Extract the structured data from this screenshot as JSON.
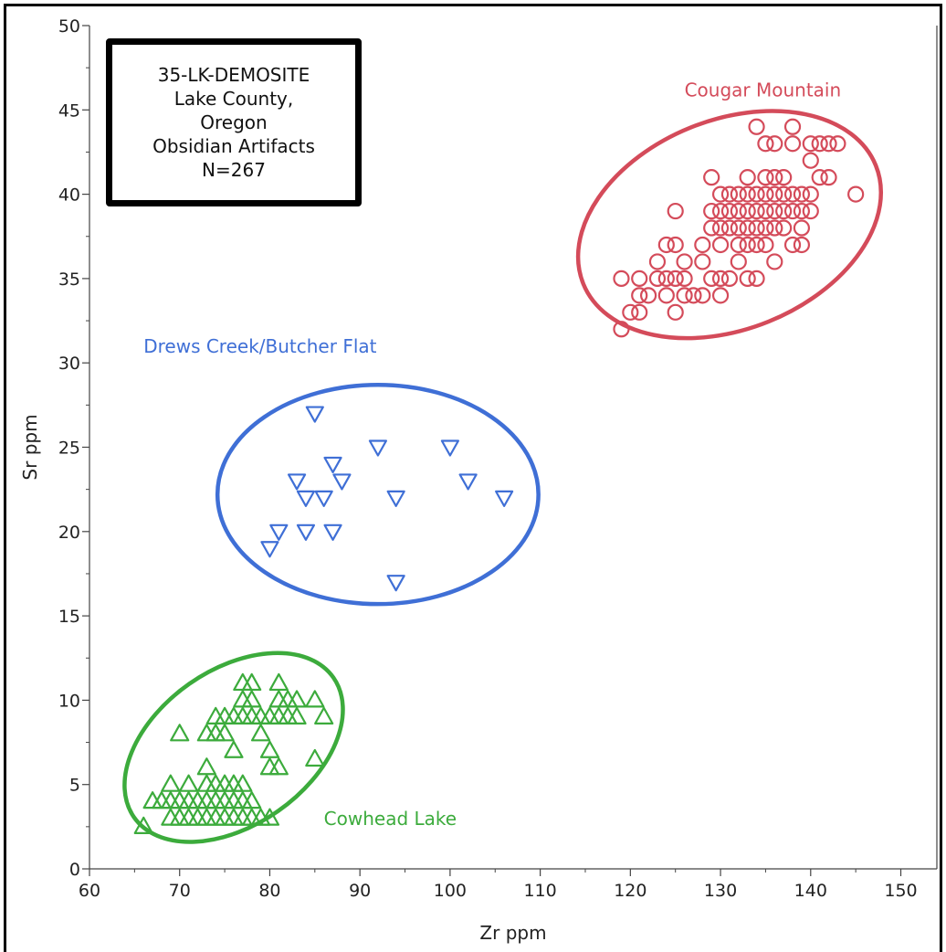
{
  "chart_data": {
    "type": "scatter",
    "xlabel": "Zr ppm",
    "ylabel": "Sr ppm",
    "xlim": [
      60,
      154
    ],
    "ylim": [
      0,
      50
    ],
    "x_ticks": [
      "60",
      "70",
      "80",
      "90",
      "100",
      "110",
      "120",
      "130",
      "140",
      "150"
    ],
    "y_ticks": [
      "0",
      "5",
      "10",
      "15",
      "20",
      "25",
      "30",
      "35",
      "40",
      "45",
      "50"
    ],
    "grid": false,
    "info_box": [
      "35-LK-DEMOSITE",
      "Lake County,",
      "Oregon",
      "Obsidian Artifacts",
      "N=267"
    ],
    "series": [
      {
        "name": "Cougar Mountain",
        "marker": "circle",
        "color": "#d44b5a",
        "ellipse": {
          "cx": 131,
          "cy": 38.2,
          "rx": 17.5,
          "ry": 6.2,
          "angle_deg": 22
        },
        "points": [
          [
            119,
            32
          ],
          [
            119,
            35
          ],
          [
            120,
            33
          ],
          [
            121,
            33
          ],
          [
            121,
            34
          ],
          [
            121,
            35
          ],
          [
            122,
            34
          ],
          [
            123,
            35
          ],
          [
            123,
            36
          ],
          [
            124,
            34
          ],
          [
            124,
            35
          ],
          [
            124,
            37
          ],
          [
            125,
            33
          ],
          [
            125,
            35
          ],
          [
            125,
            37
          ],
          [
            125,
            39
          ],
          [
            126,
            34
          ],
          [
            126,
            35
          ],
          [
            126,
            36
          ],
          [
            127,
            34
          ],
          [
            128,
            34
          ],
          [
            128,
            36
          ],
          [
            128,
            37
          ],
          [
            129,
            35
          ],
          [
            129,
            38
          ],
          [
            129,
            39
          ],
          [
            129,
            41
          ],
          [
            130,
            34
          ],
          [
            130,
            35
          ],
          [
            130,
            37
          ],
          [
            130,
            38
          ],
          [
            130,
            39
          ],
          [
            130,
            40
          ],
          [
            131,
            35
          ],
          [
            131,
            38
          ],
          [
            131,
            39
          ],
          [
            131,
            40
          ],
          [
            132,
            36
          ],
          [
            132,
            37
          ],
          [
            132,
            38
          ],
          [
            132,
            39
          ],
          [
            132,
            40
          ],
          [
            133,
            35
          ],
          [
            133,
            37
          ],
          [
            133,
            38
          ],
          [
            133,
            39
          ],
          [
            133,
            40
          ],
          [
            133,
            41
          ],
          [
            134,
            35
          ],
          [
            134,
            37
          ],
          [
            134,
            38
          ],
          [
            134,
            39
          ],
          [
            134,
            40
          ],
          [
            134,
            44
          ],
          [
            135,
            37
          ],
          [
            135,
            38
          ],
          [
            135,
            39
          ],
          [
            135,
            40
          ],
          [
            135,
            41
          ],
          [
            135,
            43
          ],
          [
            136,
            36
          ],
          [
            136,
            38
          ],
          [
            136,
            39
          ],
          [
            136,
            40
          ],
          [
            136,
            41
          ],
          [
            136,
            43
          ],
          [
            137,
            38
          ],
          [
            137,
            39
          ],
          [
            137,
            40
          ],
          [
            137,
            41
          ],
          [
            138,
            37
          ],
          [
            138,
            39
          ],
          [
            138,
            40
          ],
          [
            138,
            43
          ],
          [
            138,
            44
          ],
          [
            139,
            37
          ],
          [
            139,
            38
          ],
          [
            139,
            39
          ],
          [
            139,
            40
          ],
          [
            140,
            39
          ],
          [
            140,
            40
          ],
          [
            140,
            42
          ],
          [
            140,
            43
          ],
          [
            141,
            41
          ],
          [
            141,
            43
          ],
          [
            142,
            41
          ],
          [
            142,
            43
          ],
          [
            143,
            43
          ],
          [
            145,
            40
          ]
        ]
      },
      {
        "name": "Drews Creek/Butcher Flat",
        "marker": "triangle-down",
        "color": "#3f6fd6",
        "ellipse": {
          "cx": 92,
          "cy": 22.2,
          "rx": 17.8,
          "ry": 6.5,
          "angle_deg": 0
        },
        "points": [
          [
            80,
            19
          ],
          [
            81,
            20
          ],
          [
            83,
            23
          ],
          [
            84,
            20
          ],
          [
            84,
            22
          ],
          [
            85,
            27
          ],
          [
            86,
            22
          ],
          [
            87,
            20
          ],
          [
            87,
            24
          ],
          [
            88,
            23
          ],
          [
            92,
            25
          ],
          [
            94,
            17
          ],
          [
            94,
            22
          ],
          [
            100,
            25
          ],
          [
            102,
            23
          ],
          [
            106,
            22
          ]
        ]
      },
      {
        "name": "Cowhead Lake",
        "marker": "triangle-up",
        "color": "#3cab3c",
        "ellipse": {
          "cx": 76,
          "cy": 7.2,
          "rx": 13.5,
          "ry": 4.6,
          "angle_deg": 35
        },
        "points": [
          [
            66,
            2.5
          ],
          [
            67,
            4
          ],
          [
            68,
            4
          ],
          [
            69,
            3
          ],
          [
            69,
            4
          ],
          [
            69,
            5
          ],
          [
            70,
            3
          ],
          [
            70,
            4
          ],
          [
            70,
            8
          ],
          [
            71,
            3
          ],
          [
            71,
            4
          ],
          [
            71,
            5
          ],
          [
            72,
            3
          ],
          [
            72,
            4
          ],
          [
            73,
            3
          ],
          [
            73,
            4
          ],
          [
            73,
            5
          ],
          [
            73,
            6
          ],
          [
            73,
            8
          ],
          [
            74,
            3
          ],
          [
            74,
            4
          ],
          [
            74,
            5
          ],
          [
            74,
            8
          ],
          [
            74,
            9
          ],
          [
            75,
            3
          ],
          [
            75,
            4
          ],
          [
            75,
            5
          ],
          [
            75,
            8
          ],
          [
            75,
            9
          ],
          [
            76,
            3
          ],
          [
            76,
            4
          ],
          [
            76,
            5
          ],
          [
            76,
            7
          ],
          [
            76,
            9
          ],
          [
            77,
            3
          ],
          [
            77,
            4
          ],
          [
            77,
            5
          ],
          [
            77,
            9
          ],
          [
            77,
            10
          ],
          [
            77,
            11
          ],
          [
            78,
            3
          ],
          [
            78,
            4
          ],
          [
            78,
            9
          ],
          [
            78,
            10
          ],
          [
            78,
            11
          ],
          [
            79,
            3
          ],
          [
            79,
            8
          ],
          [
            79,
            9
          ],
          [
            80,
            3
          ],
          [
            80,
            6
          ],
          [
            80,
            7
          ],
          [
            80,
            9
          ],
          [
            81,
            6
          ],
          [
            81,
            9
          ],
          [
            81,
            10
          ],
          [
            81,
            11
          ],
          [
            82,
            9
          ],
          [
            82,
            10
          ],
          [
            83,
            9
          ],
          [
            83,
            10
          ],
          [
            85,
            6.5
          ],
          [
            85,
            10
          ],
          [
            86,
            9
          ]
        ]
      }
    ]
  }
}
